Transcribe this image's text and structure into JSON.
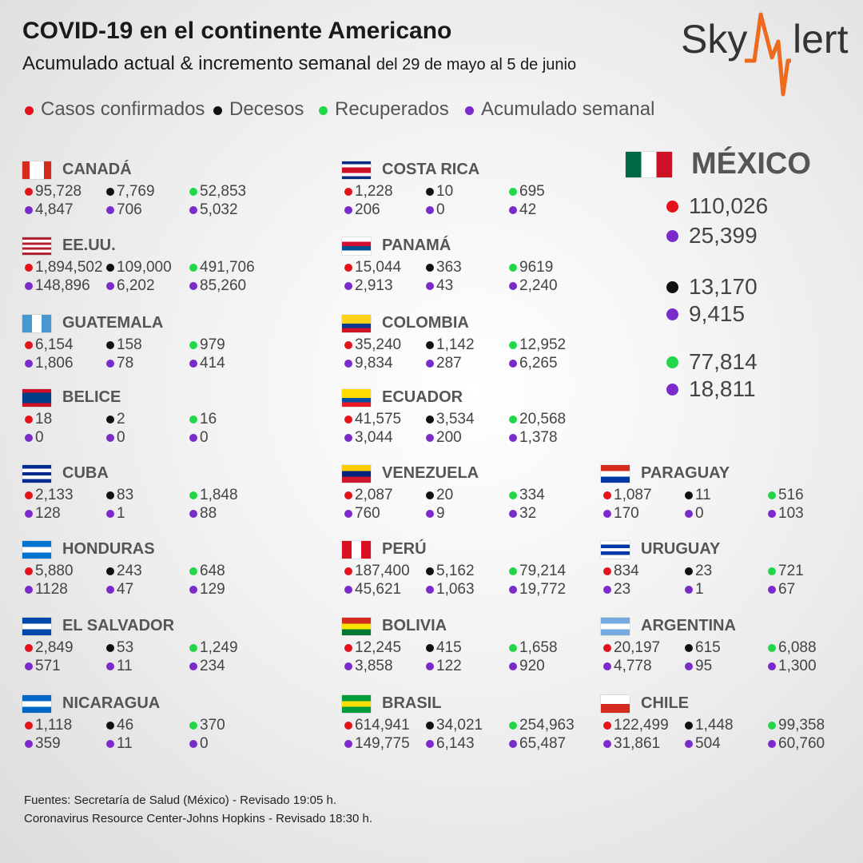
{
  "header": {
    "title": "COVID-19 en el continente Americano",
    "subtitle": "Acumulado actual & incremento semanal",
    "date_range": "del 29 de mayo al 5 de junio"
  },
  "logo": {
    "left": "Sky",
    "right": "lert"
  },
  "legend": [
    "Casos confirmados",
    "Decesos",
    "Recuperados",
    "Acumulado semanal"
  ],
  "mexico": {
    "name": "MÉXICO",
    "values": [
      [
        "110,026",
        "25,399"
      ],
      [
        "13,170",
        "9,415"
      ],
      [
        "77,814",
        "18,811"
      ]
    ]
  },
  "countries": [
    {
      "name": "CANADÁ",
      "rows": [
        [
          "95,728",
          "7,769",
          "52,853"
        ],
        [
          "4,847",
          "706",
          "5,032"
        ]
      ]
    },
    {
      "name": "EE.UU.",
      "rows": [
        [
          "1,894,502",
          "109,000",
          "491,706"
        ],
        [
          "148,896",
          "6,202",
          "85,260"
        ]
      ]
    },
    {
      "name": "GUATEMALA",
      "rows": [
        [
          "6,154",
          "158",
          "979"
        ],
        [
          "1,806",
          "78",
          "414"
        ]
      ]
    },
    {
      "name": "BELICE",
      "rows": [
        [
          "18",
          "2",
          "16"
        ],
        [
          "0",
          "0",
          "0"
        ]
      ]
    },
    {
      "name": "CUBA",
      "rows": [
        [
          "2,133",
          "83",
          "1,848"
        ],
        [
          "128",
          "1",
          "88"
        ]
      ]
    },
    {
      "name": "HONDURAS",
      "rows": [
        [
          "5,880",
          "243",
          "648"
        ],
        [
          "1128",
          "47",
          "129"
        ]
      ]
    },
    {
      "name": "EL SALVADOR",
      "rows": [
        [
          "2,849",
          "53",
          "1,249"
        ],
        [
          "571",
          "11",
          "234"
        ]
      ]
    },
    {
      "name": "NICARAGUA",
      "rows": [
        [
          "1,118",
          "46",
          "370"
        ],
        [
          "359",
          "11",
          "0"
        ]
      ]
    },
    {
      "name": "COSTA RICA",
      "rows": [
        [
          "1,228",
          "10",
          "695"
        ],
        [
          "206",
          "0",
          "42"
        ]
      ]
    },
    {
      "name": "PANAMÁ",
      "rows": [
        [
          "15,044",
          "363",
          "9619"
        ],
        [
          "2,913",
          "43",
          "2,240"
        ]
      ]
    },
    {
      "name": "COLOMBIA",
      "rows": [
        [
          "35,240",
          "1,142",
          "12,952"
        ],
        [
          "9,834",
          "287",
          "6,265"
        ]
      ]
    },
    {
      "name": "ECUADOR",
      "rows": [
        [
          "41,575",
          "3,534",
          "20,568"
        ],
        [
          "3,044",
          "200",
          "1,378"
        ]
      ]
    },
    {
      "name": "VENEZUELA",
      "rows": [
        [
          "2,087",
          "20",
          "334"
        ],
        [
          "760",
          "9",
          "32"
        ]
      ]
    },
    {
      "name": "PERÚ",
      "rows": [
        [
          "187,400",
          "5,162",
          "79,214"
        ],
        [
          "45,621",
          "1,063",
          "19,772"
        ]
      ]
    },
    {
      "name": "BOLIVIA",
      "rows": [
        [
          "12,245",
          "415",
          "1,658"
        ],
        [
          "3,858",
          "122",
          "920"
        ]
      ]
    },
    {
      "name": "BRASIL",
      "rows": [
        [
          "614,941",
          "34,021",
          "254,963"
        ],
        [
          "149,775",
          "6,143",
          "65,487"
        ]
      ]
    },
    {
      "name": "PARAGUAY",
      "rows": [
        [
          "1,087",
          "11",
          "516"
        ],
        [
          "170",
          "0",
          "103"
        ]
      ]
    },
    {
      "name": "URUGUAY",
      "rows": [
        [
          "834",
          "23",
          "721"
        ],
        [
          "23",
          "1",
          "67"
        ]
      ]
    },
    {
      "name": "ARGENTINA",
      "rows": [
        [
          "20,197",
          "615",
          "6,088"
        ],
        [
          "4,778",
          "95",
          "1,300"
        ]
      ]
    },
    {
      "name": "CHILE",
      "rows": [
        [
          "122,499",
          "1,448",
          "99,358"
        ],
        [
          "31,861",
          "504",
          "60,760"
        ]
      ]
    }
  ],
  "footer": [
    "Fuentes:  Secretaría de Salud (México) - Revisado 19:05 h.",
    "Coronavirus Resource Center-Johns Hopkins - Revisado 18:30 h."
  ]
}
